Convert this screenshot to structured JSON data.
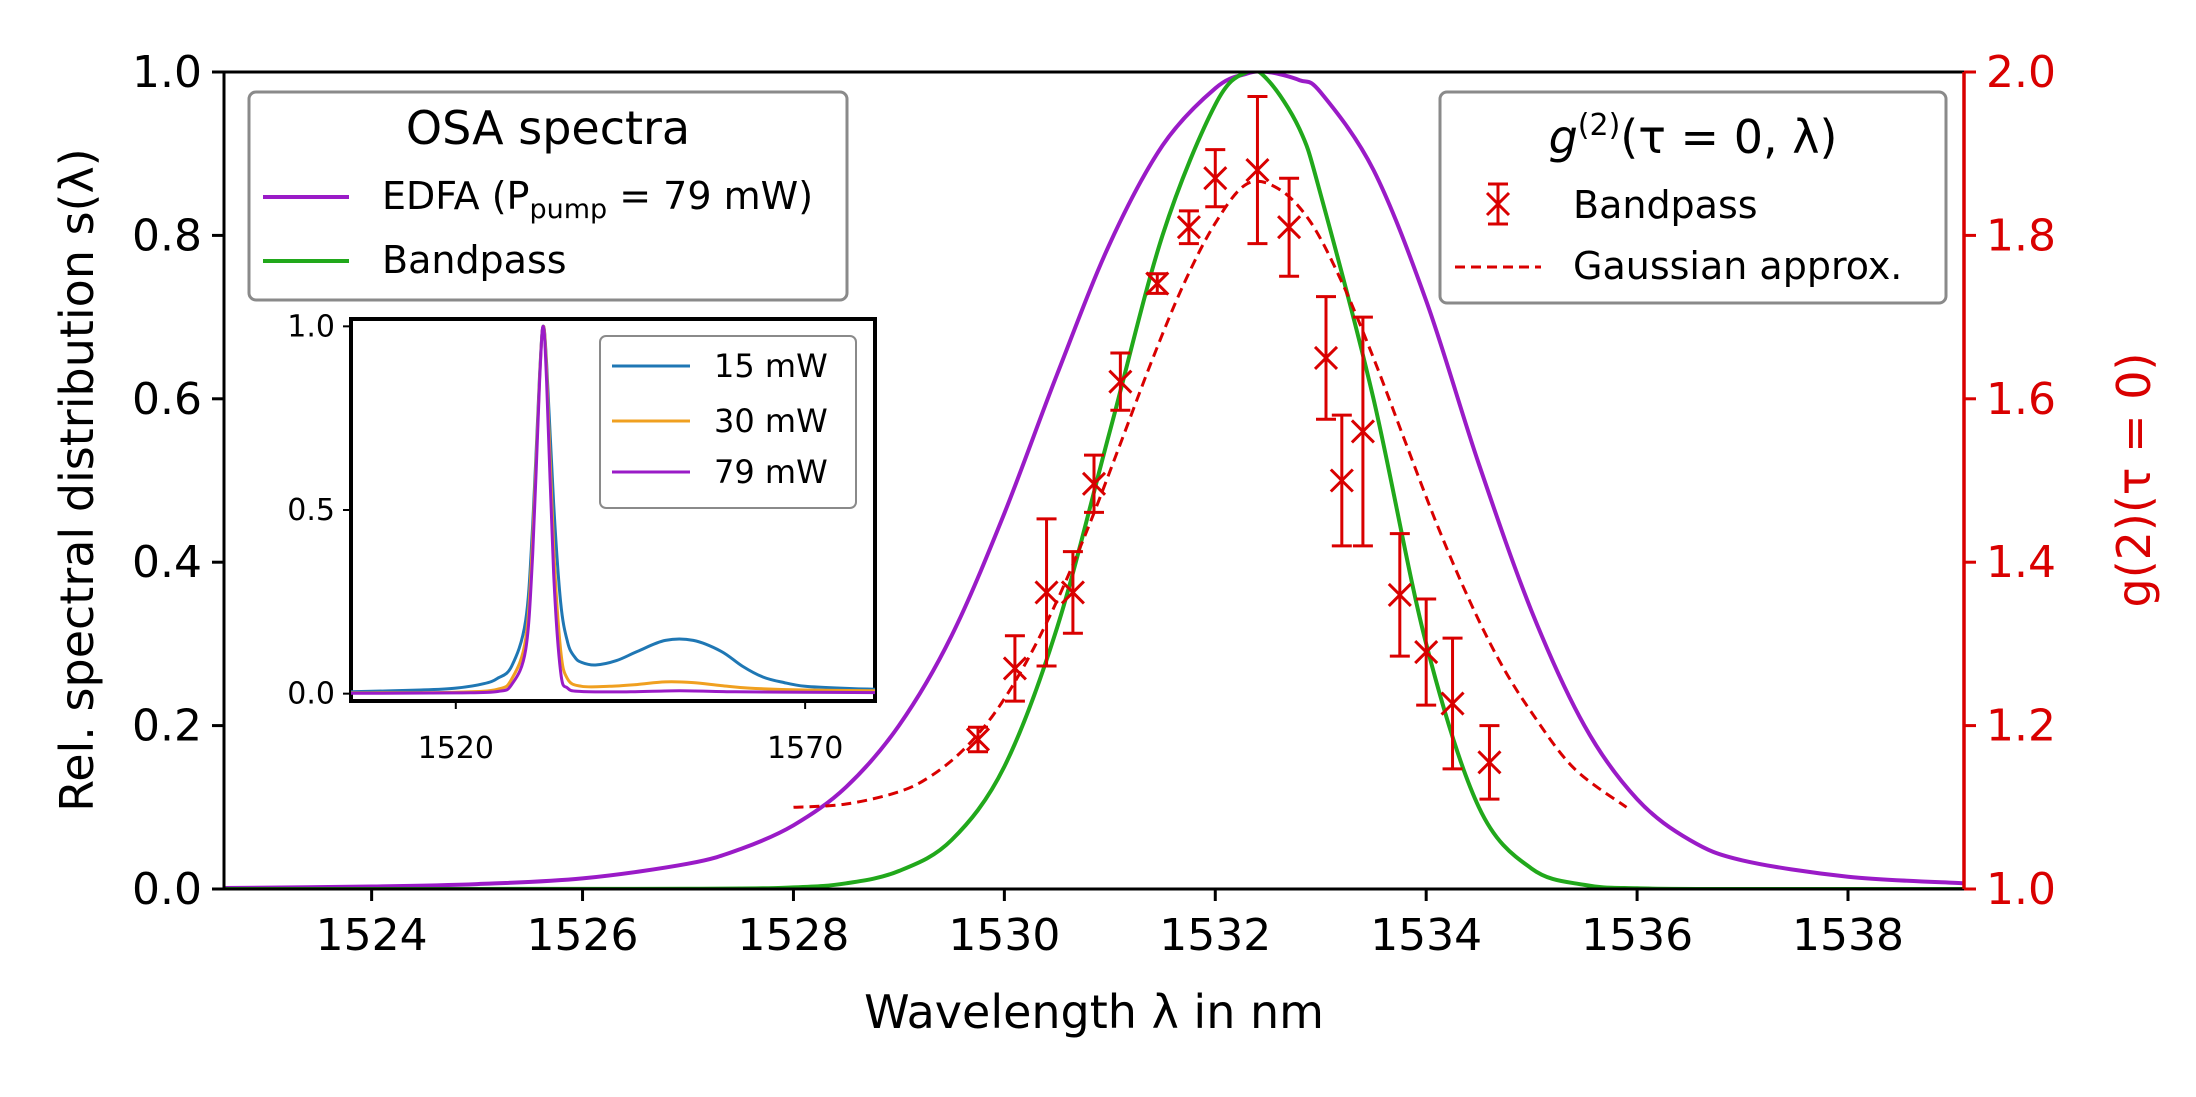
{
  "chart_data": {
    "type": "line",
    "x_axis": {
      "label": "Wavelength λ in nm",
      "range": [
        1522.6,
        1539.1
      ],
      "ticks": [
        1524,
        1526,
        1528,
        1530,
        1532,
        1534,
        1536,
        1538
      ],
      "tick_labels": [
        "1524",
        "1526",
        "1528",
        "1530",
        "1532",
        "1534",
        "1536",
        "1538"
      ]
    },
    "y_left": {
      "label": "Rel. spectral distribution s(λ)",
      "range": [
        0,
        1
      ],
      "ticks": [
        0,
        0.2,
        0.4,
        0.6,
        0.8,
        1.0
      ],
      "tick_labels": [
        "0.0",
        "0.2",
        "0.4",
        "0.6",
        "0.8",
        "1.0"
      ]
    },
    "y_right": {
      "label": "g(2)(τ = 0)",
      "range": [
        1.0,
        2.0
      ],
      "ticks": [
        1.0,
        1.2,
        1.4,
        1.6,
        1.8,
        2.0
      ],
      "tick_labels": [
        "1.0",
        "1.2",
        "1.4",
        "1.6",
        "1.8",
        "2.0"
      ],
      "color": "#d90000"
    },
    "series": [
      {
        "name": "EDFA (P_pump = 79 mW)",
        "axis": "left",
        "color": "#9a1bc7",
        "x": [
          1522.6,
          1524,
          1525,
          1526,
          1527,
          1527.5,
          1528,
          1528.5,
          1529,
          1529.5,
          1530,
          1530.5,
          1531,
          1531.5,
          1532,
          1532.3,
          1532.5,
          1532.8,
          1533,
          1533.5,
          1534,
          1534.5,
          1535,
          1535.5,
          1536,
          1536.5,
          1537,
          1538,
          1539.1
        ],
        "y": [
          0.0012,
          0.003,
          0.006,
          0.013,
          0.031,
          0.049,
          0.078,
          0.125,
          0.2,
          0.31,
          0.46,
          0.63,
          0.79,
          0.91,
          0.98,
          0.998,
          1.0,
          0.99,
          0.975,
          0.88,
          0.72,
          0.52,
          0.34,
          0.2,
          0.11,
          0.06,
          0.035,
          0.015,
          0.007
        ]
      },
      {
        "name": "Bandpass",
        "axis": "left",
        "color": "#21a81b",
        "x": [
          1522.6,
          1527,
          1528,
          1528.5,
          1529,
          1529.5,
          1530,
          1530.5,
          1531,
          1531.5,
          1532,
          1532.3,
          1532.5,
          1532.8,
          1533,
          1533.5,
          1534,
          1534.5,
          1535,
          1535.5,
          1536,
          1537,
          1539.1
        ],
        "y": [
          0,
          0.0003,
          0.002,
          0.007,
          0.022,
          0.06,
          0.15,
          0.32,
          0.56,
          0.8,
          0.96,
          1.0,
          0.99,
          0.93,
          0.85,
          0.6,
          0.3,
          0.1,
          0.025,
          0.005,
          0.0008,
          0,
          0
        ]
      }
    ],
    "g2_bandpass": {
      "name": "Bandpass",
      "axis": "right",
      "color": "#d90000",
      "x": [
        1529.75,
        1530.1,
        1530.4,
        1530.65,
        1530.85,
        1531.1,
        1531.45,
        1531.75,
        1532.0,
        1532.4,
        1532.7,
        1533.05,
        1533.2,
        1533.4,
        1533.75,
        1534.0,
        1534.25,
        1534.6
      ],
      "y": [
        1.183,
        1.27,
        1.363,
        1.363,
        1.496,
        1.621,
        1.741,
        1.81,
        1.87,
        1.88,
        1.81,
        1.65,
        1.5,
        1.56,
        1.36,
        1.29,
        1.227,
        1.155
      ],
      "err": [
        0.015,
        0.04,
        0.09,
        0.05,
        0.035,
        0.035,
        0.012,
        0.02,
        0.035,
        0.09,
        0.06,
        0.075,
        0.08,
        0.14,
        0.075,
        0.065,
        0.08,
        0.045
      ]
    },
    "g2_gaussian": {
      "name": "Gaussian approx.",
      "axis": "right",
      "color": "#d90000",
      "x": [
        1528.0,
        1528.5,
        1529.0,
        1529.3,
        1529.6,
        1529.9,
        1530.2,
        1530.5,
        1530.8,
        1531.1,
        1531.4,
        1531.7,
        1532.0,
        1532.3,
        1532.6,
        1532.9,
        1533.2,
        1533.5,
        1533.8,
        1534.1,
        1534.4,
        1534.7,
        1535.0,
        1535.4,
        1535.9
      ],
      "y": [
        1.1,
        1.104,
        1.119,
        1.138,
        1.169,
        1.214,
        1.276,
        1.353,
        1.444,
        1.545,
        1.647,
        1.74,
        1.815,
        1.863,
        1.857,
        1.817,
        1.743,
        1.65,
        1.548,
        1.447,
        1.356,
        1.278,
        1.216,
        1.148,
        1.1
      ]
    },
    "legend_osa": {
      "title": "OSA spectra",
      "entries": [
        "EDFA (P",
        "pump",
        " = 79 mW)",
        "Bandpass"
      ]
    },
    "legend_g2": {
      "title_prefix": "g",
      "title_sup": "(2)",
      "title_suffix": "(τ = 0, λ)",
      "entries": [
        "Bandpass",
        "Gaussian approx."
      ]
    },
    "inset": {
      "type": "line",
      "x_range": [
        1505,
        1580
      ],
      "y_range": [
        -0.02,
        1.02
      ],
      "x_ticks": [
        1520,
        1570
      ],
      "x_tick_labels": [
        "1520",
        "1570"
      ],
      "y_ticks": [
        0.0,
        0.5,
        1.0
      ],
      "y_tick_labels": [
        "0.0",
        "0.5",
        "1.0"
      ],
      "series": [
        {
          "name": "15 mW",
          "color": "#1f77b4",
          "x": [
            1505,
            1515,
            1520,
            1524,
            1526,
            1528,
            1530,
            1531,
            1532,
            1532.5,
            1533,
            1534,
            1535,
            1536,
            1537,
            1538,
            1540,
            1543,
            1546,
            1550,
            1554,
            1558,
            1561,
            1564,
            1567,
            1570,
            1575,
            1580
          ],
          "y": [
            0.005,
            0.01,
            0.015,
            0.027,
            0.042,
            0.075,
            0.2,
            0.46,
            0.87,
            1.0,
            0.9,
            0.52,
            0.25,
            0.14,
            0.1,
            0.085,
            0.078,
            0.09,
            0.115,
            0.145,
            0.145,
            0.115,
            0.075,
            0.045,
            0.03,
            0.02,
            0.015,
            0.012
          ]
        },
        {
          "name": "30 mW",
          "color": "#f0a020",
          "x": [
            1505,
            1520,
            1526,
            1528,
            1530,
            1531,
            1532,
            1532.5,
            1533,
            1534,
            1535,
            1536,
            1538,
            1542,
            1546,
            1550,
            1554,
            1558,
            1562,
            1570,
            1580
          ],
          "y": [
            0.002,
            0.004,
            0.012,
            0.04,
            0.15,
            0.42,
            0.86,
            1.0,
            0.88,
            0.4,
            0.12,
            0.04,
            0.02,
            0.02,
            0.025,
            0.032,
            0.03,
            0.022,
            0.015,
            0.01,
            0.008
          ]
        },
        {
          "name": "79 mW",
          "color": "#9a1bc7",
          "x": [
            1505,
            1520,
            1526,
            1528,
            1530,
            1531,
            1532,
            1532.5,
            1533,
            1534,
            1535,
            1536,
            1538,
            1545,
            1552,
            1560,
            1570,
            1580
          ],
          "y": [
            0.001,
            0.002,
            0.006,
            0.025,
            0.12,
            0.38,
            0.85,
            1.0,
            0.85,
            0.33,
            0.06,
            0.015,
            0.006,
            0.005,
            0.008,
            0.005,
            0.004,
            0.003
          ]
        }
      ]
    }
  }
}
